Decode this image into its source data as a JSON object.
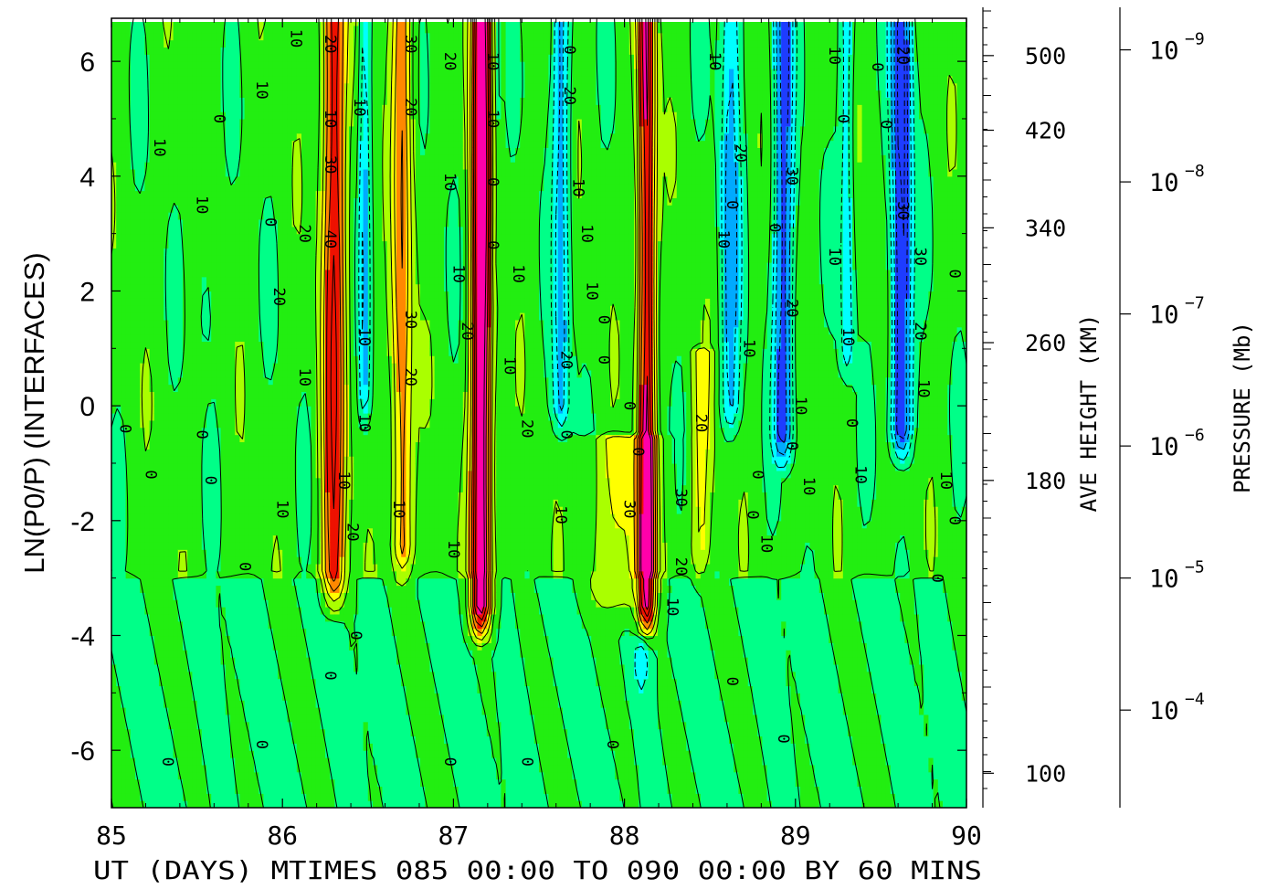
{
  "chart_data": {
    "type": "heatmap",
    "title": "",
    "xlabel": "UT (DAYS) MTIMES 085 00:00 TO 090 00:00 BY   60 MINS",
    "ylabel": "LN(P0/P) (INTERFACES)",
    "xlim": [
      85,
      90
    ],
    "ylim": [
      -7,
      6.75
    ],
    "x_ticks": [
      "85",
      "86",
      "87",
      "88",
      "89",
      "90"
    ],
    "y_ticks": [
      "6",
      "4",
      "2",
      "0",
      "-2",
      "-4",
      "-6"
    ],
    "y_tick_values": [
      6,
      4,
      2,
      0,
      -2,
      -4,
      -6
    ],
    "right_axis_1": {
      "label": "AVE HEIGHT (KM)",
      "ticks": [
        {
          "label": "500",
          "lnp": 6.1
        },
        {
          "label": "420",
          "lnp": 4.8
        },
        {
          "label": "340",
          "lnp": 3.1
        },
        {
          "label": "260",
          "lnp": 1.1
        },
        {
          "label": "180",
          "lnp": -1.3
        },
        {
          "label": "100",
          "lnp": -6.4
        }
      ]
    },
    "right_axis_2": {
      "label": "PRESSURE (Mb)",
      "ticks": [
        {
          "base": "10",
          "exp": "−9",
          "lnp": 6.2
        },
        {
          "base": "10",
          "exp": "−8",
          "lnp": 3.9
        },
        {
          "base": "10",
          "exp": "−7",
          "lnp": 1.6
        },
        {
          "base": "10",
          "exp": "−6",
          "lnp": -0.7
        },
        {
          "base": "10",
          "exp": "−5",
          "lnp": -3.0
        },
        {
          "base": "10",
          "exp": "−4",
          "lnp": -5.3
        }
      ]
    },
    "grid": false,
    "color_scale": [
      {
        "min": -50,
        "max": -30,
        "color": "#1e3cff"
      },
      {
        "min": -30,
        "max": -20,
        "color": "#00aaff"
      },
      {
        "min": -20,
        "max": -10,
        "color": "#00ffff"
      },
      {
        "min": -10,
        "max": 0,
        "color": "#00ff88"
      },
      {
        "min": 0,
        "max": 10,
        "color": "#22ee11"
      },
      {
        "min": 10,
        "max": 20,
        "color": "#aaff00"
      },
      {
        "min": 20,
        "max": 30,
        "color": "#ffff00"
      },
      {
        "min": 30,
        "max": 40,
        "color": "#ff8800"
      },
      {
        "min": 40,
        "max": 60,
        "color": "#ee1100"
      },
      {
        "min": 60,
        "max": 100,
        "color": "#ff00aa"
      }
    ],
    "contour_labels": [
      {
        "x": 85.05,
        "y": -0.4,
        "text": "0"
      },
      {
        "x": 85.25,
        "y": 4.5,
        "text": "10"
      },
      {
        "x": 85.5,
        "y": 3.5,
        "text": "10"
      },
      {
        "x": 85.5,
        "y": -0.5,
        "text": "0"
      },
      {
        "x": 85.6,
        "y": 5.0,
        "text": "0"
      },
      {
        "x": 85.2,
        "y": -1.2,
        "text": "0"
      },
      {
        "x": 85.55,
        "y": -1.3,
        "text": "0"
      },
      {
        "x": 85.85,
        "y": 5.5,
        "text": "10"
      },
      {
        "x": 85.9,
        "y": 3.2,
        "text": "0"
      },
      {
        "x": 85.95,
        "y": 1.9,
        "text": "20"
      },
      {
        "x": 86.1,
        "y": 3.0,
        "text": "20"
      },
      {
        "x": 86.1,
        "y": 0.5,
        "text": "10"
      },
      {
        "x": 85.97,
        "y": -1.8,
        "text": "10"
      },
      {
        "x": 86.05,
        "y": 6.4,
        "text": "10"
      },
      {
        "x": 86.25,
        "y": 6.3,
        "text": "20"
      },
      {
        "x": 86.25,
        "y": 5.0,
        "text": "10"
      },
      {
        "x": 86.25,
        "y": 4.2,
        "text": "30"
      },
      {
        "x": 86.25,
        "y": 2.9,
        "text": "40"
      },
      {
        "x": 86.33,
        "y": -1.3,
        "text": "10"
      },
      {
        "x": 86.38,
        "y": -2.2,
        "text": "20"
      },
      {
        "x": 86.42,
        "y": 5.2,
        "text": "10"
      },
      {
        "x": 86.45,
        "y": 1.2,
        "text": "10"
      },
      {
        "x": 86.45,
        "y": -0.3,
        "text": "10"
      },
      {
        "x": 86.4,
        "y": -4.0,
        "text": "0"
      },
      {
        "x": 86.72,
        "y": 6.3,
        "text": "30"
      },
      {
        "x": 86.72,
        "y": 5.2,
        "text": "20"
      },
      {
        "x": 86.72,
        "y": 1.5,
        "text": "30"
      },
      {
        "x": 86.72,
        "y": 0.5,
        "text": "20"
      },
      {
        "x": 86.65,
        "y": -1.8,
        "text": "10"
      },
      {
        "x": 86.95,
        "y": 6.0,
        "text": "20"
      },
      {
        "x": 86.95,
        "y": 3.9,
        "text": "10"
      },
      {
        "x": 87.0,
        "y": 2.3,
        "text": "10"
      },
      {
        "x": 87.05,
        "y": 1.3,
        "text": "20"
      },
      {
        "x": 86.97,
        "y": -2.5,
        "text": "10"
      },
      {
        "x": 87.2,
        "y": 6.0,
        "text": "10"
      },
      {
        "x": 87.2,
        "y": 5.0,
        "text": "10"
      },
      {
        "x": 87.2,
        "y": 3.9,
        "text": "0"
      },
      {
        "x": 87.2,
        "y": 2.8,
        "text": "0"
      },
      {
        "x": 87.3,
        "y": 0.7,
        "text": "10"
      },
      {
        "x": 87.35,
        "y": 2.3,
        "text": "10"
      },
      {
        "x": 87.4,
        "y": -0.4,
        "text": "20"
      },
      {
        "x": 87.65,
        "y": 6.2,
        "text": "0"
      },
      {
        "x": 87.65,
        "y": 5.4,
        "text": "20"
      },
      {
        "x": 87.7,
        "y": 3.8,
        "text": "10"
      },
      {
        "x": 87.75,
        "y": 3.0,
        "text": "10"
      },
      {
        "x": 87.78,
        "y": 2.0,
        "text": "10"
      },
      {
        "x": 87.63,
        "y": 0.8,
        "text": "20"
      },
      {
        "x": 87.63,
        "y": -0.5,
        "text": "0"
      },
      {
        "x": 87.6,
        "y": -1.9,
        "text": "10"
      },
      {
        "x": 87.85,
        "y": 1.5,
        "text": "0"
      },
      {
        "x": 87.85,
        "y": 0.8,
        "text": "0"
      },
      {
        "x": 88.0,
        "y": 0.0,
        "text": "0"
      },
      {
        "x": 88.05,
        "y": -0.8,
        "text": "0"
      },
      {
        "x": 88.0,
        "y": -1.8,
        "text": "30"
      },
      {
        "x": 88.3,
        "y": -1.6,
        "text": "30"
      },
      {
        "x": 88.3,
        "y": -2.8,
        "text": "20"
      },
      {
        "x": 88.25,
        "y": -3.5,
        "text": "10"
      },
      {
        "x": 88.42,
        "y": -0.3,
        "text": "20"
      },
      {
        "x": 88.5,
        "y": 6.0,
        "text": "10"
      },
      {
        "x": 88.55,
        "y": 2.9,
        "text": "10"
      },
      {
        "x": 88.65,
        "y": 4.4,
        "text": "20"
      },
      {
        "x": 88.6,
        "y": 3.5,
        "text": "0"
      },
      {
        "x": 88.7,
        "y": 1.0,
        "text": "10"
      },
      {
        "x": 88.75,
        "y": -1.2,
        "text": "0"
      },
      {
        "x": 88.72,
        "y": -1.9,
        "text": "0"
      },
      {
        "x": 88.8,
        "y": -2.4,
        "text": "10"
      },
      {
        "x": 88.6,
        "y": -4.8,
        "text": "0"
      },
      {
        "x": 88.95,
        "y": 4.0,
        "text": "30"
      },
      {
        "x": 88.95,
        "y": 1.7,
        "text": "20"
      },
      {
        "x": 89.0,
        "y": 0.0,
        "text": "10"
      },
      {
        "x": 88.95,
        "y": -0.7,
        "text": "0"
      },
      {
        "x": 89.05,
        "y": -1.4,
        "text": "10"
      },
      {
        "x": 88.85,
        "y": 3.1,
        "text": "0"
      },
      {
        "x": 88.9,
        "y": -5.8,
        "text": "0"
      },
      {
        "x": 89.2,
        "y": 6.1,
        "text": "10"
      },
      {
        "x": 89.25,
        "y": 5.0,
        "text": "0"
      },
      {
        "x": 89.2,
        "y": 2.6,
        "text": "10"
      },
      {
        "x": 89.28,
        "y": 1.2,
        "text": "10"
      },
      {
        "x": 89.3,
        "y": -0.3,
        "text": "0"
      },
      {
        "x": 89.35,
        "y": -1.2,
        "text": "10"
      },
      {
        "x": 89.45,
        "y": 5.9,
        "text": "0"
      },
      {
        "x": 89.5,
        "y": 4.9,
        "text": "0"
      },
      {
        "x": 89.6,
        "y": 6.1,
        "text": "20"
      },
      {
        "x": 89.6,
        "y": 3.4,
        "text": "30"
      },
      {
        "x": 89.7,
        "y": 2.6,
        "text": "30"
      },
      {
        "x": 89.7,
        "y": 1.3,
        "text": "20"
      },
      {
        "x": 89.72,
        "y": 0.3,
        "text": "10"
      },
      {
        "x": 89.85,
        "y": -1.3,
        "text": "10"
      },
      {
        "x": 89.9,
        "y": -2.0,
        "text": "0"
      },
      {
        "x": 89.9,
        "y": 2.3,
        "text": "0"
      },
      {
        "x": 89.8,
        "y": -3.0,
        "text": "0"
      },
      {
        "x": 85.3,
        "y": -6.2,
        "text": "0"
      },
      {
        "x": 85.85,
        "y": -5.9,
        "text": "0"
      },
      {
        "x": 85.75,
        "y": -2.8,
        "text": "0"
      },
      {
        "x": 86.25,
        "y": -4.7,
        "text": "0"
      },
      {
        "x": 86.95,
        "y": -6.2,
        "text": "0"
      },
      {
        "x": 87.4,
        "y": -6.2,
        "text": "0"
      },
      {
        "x": 87.9,
        "y": -5.9,
        "text": "0"
      }
    ]
  }
}
